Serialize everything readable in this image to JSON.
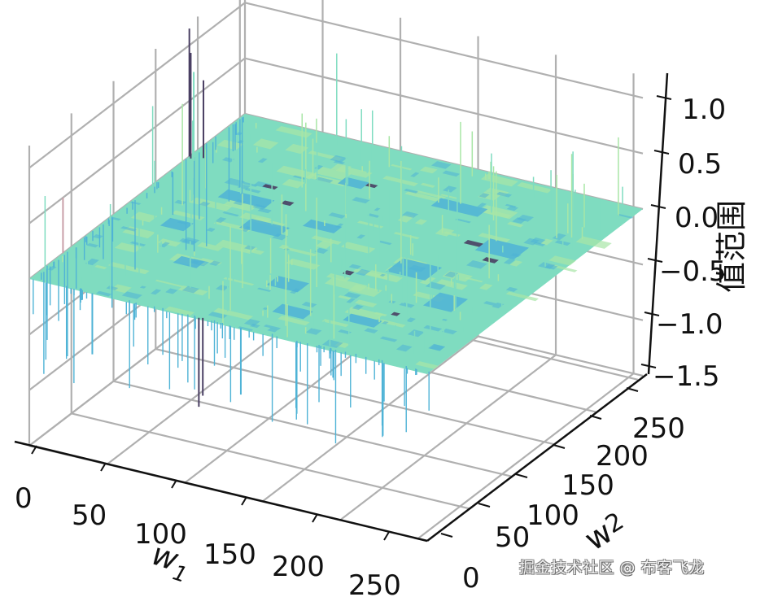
{
  "chart_data": {
    "type": "surface3d",
    "title": "",
    "xlabel": "W1",
    "ylabel": "W2",
    "zlabel": "值范围",
    "x_ticks": [
      "0",
      "50",
      "100",
      "150",
      "200",
      "250"
    ],
    "y_ticks": [
      "0",
      "50",
      "100",
      "150",
      "200",
      "250"
    ],
    "z_ticks": [
      "1.0",
      "0.5",
      "0.0",
      "−0.5",
      "−1.0",
      "−1.5"
    ],
    "xlim": [
      0,
      256
    ],
    "ylim": [
      0,
      256
    ],
    "zlim": [
      -1.5,
      1.2
    ],
    "grid": true,
    "colormap": "viridis-like (light green/teal/blue/dark purple)",
    "surface_base_value": 0.0,
    "notes": "Noisy flat surface around 0 with sparse spikes up to ~1.2 and down to ~-1.5; rectangular blue/dark patches distributed across the plane.",
    "colors": {
      "surface_main": "#7fdcc0",
      "surface_light": "#a8e6a6",
      "surface_blue": "#4fb3d6",
      "surface_dark": "#4a3f63",
      "surface_pink": "#c9a0a8",
      "grid": "#b0b0b0",
      "axis": "#111111"
    }
  },
  "watermark": "掘金技术社区 @ 布客飞龙"
}
